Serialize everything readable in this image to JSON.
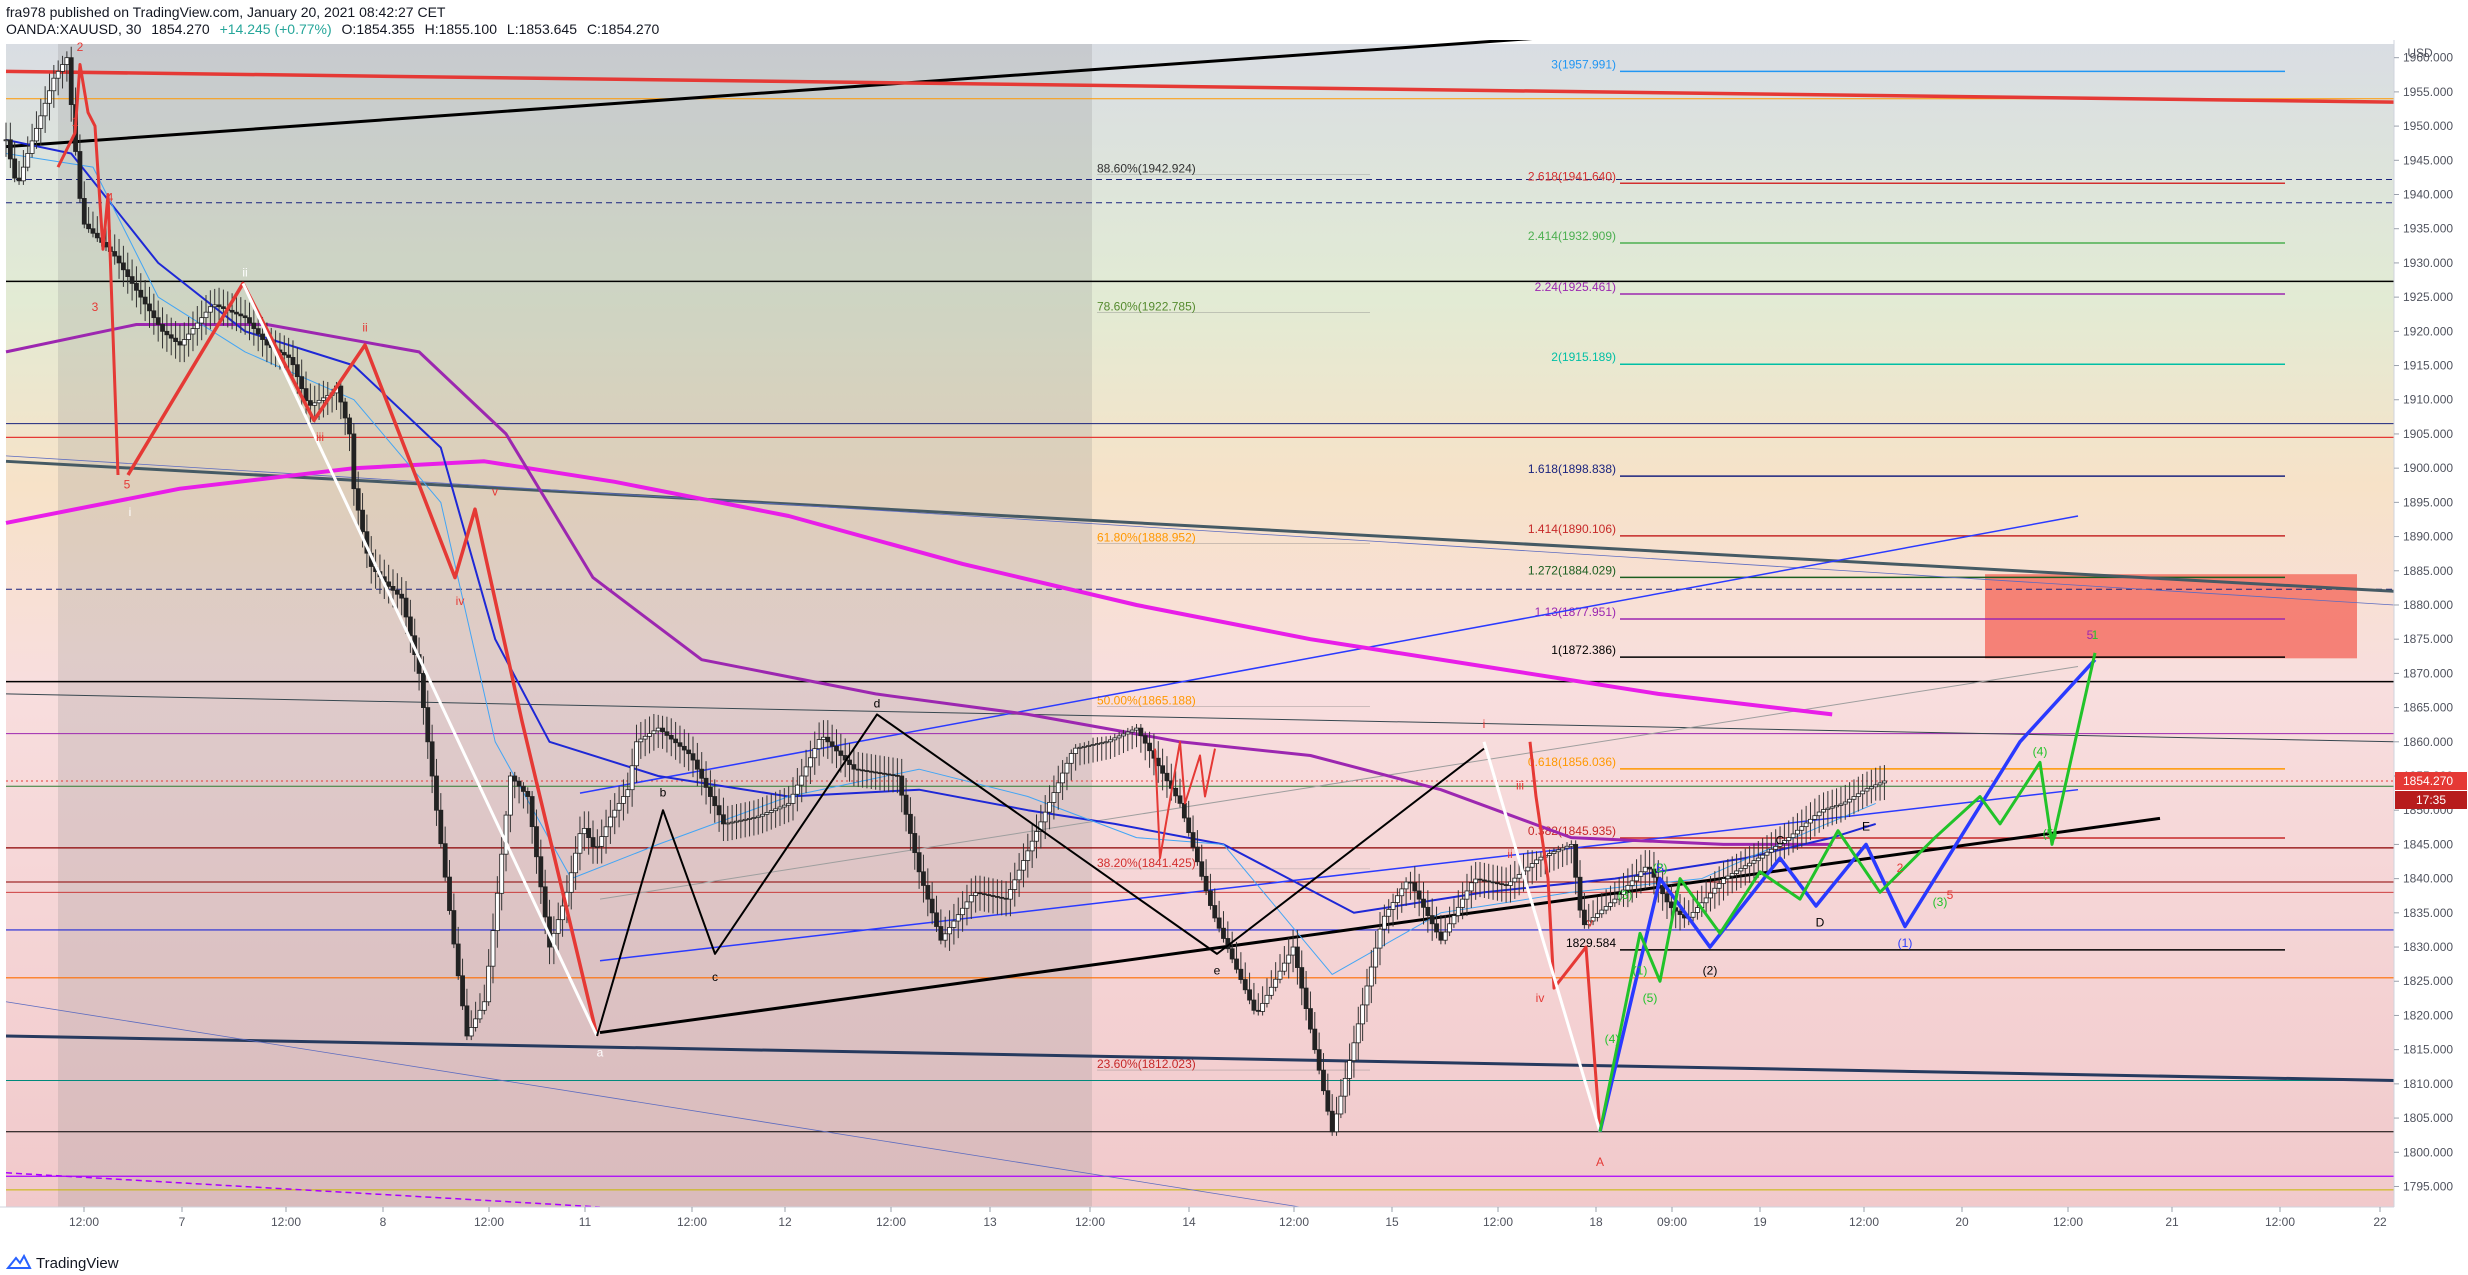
{
  "header": {
    "published": "fra978 published on TradingView.com, January 20, 2021 08:42:27 CET",
    "symbol": "OANDA:XAUUSD, 30",
    "last": "1854.270",
    "change": "+14.245 (+0.77%)",
    "open": "O:1854.355",
    "high": "H:1855.100",
    "low": "L:1853.645",
    "close": "C:1854.270"
  },
  "footer": {
    "brand": "TradingView"
  },
  "axis": {
    "currency": "USD",
    "ylim": [
      1792,
      1962
    ],
    "y_ticks": [
      "1960.000",
      "1955.000",
      "1950.000",
      "1945.000",
      "1940.000",
      "1935.000",
      "1930.000",
      "1925.000",
      "1920.000",
      "1915.000",
      "1910.000",
      "1905.000",
      "1900.000",
      "1895.000",
      "1890.000",
      "1885.000",
      "1880.000",
      "1875.000",
      "1870.000",
      "1865.000",
      "1860.000",
      "1855.000",
      "1850.000",
      "1845.000",
      "1840.000",
      "1835.000",
      "1830.000",
      "1825.000",
      "1820.000",
      "1815.000",
      "1810.000",
      "1805.000",
      "1800.000",
      "1795.000"
    ],
    "x_ticks": [
      "12:00",
      "7",
      "12:00",
      "8",
      "12:00",
      "11",
      "12:00",
      "12",
      "12:00",
      "13",
      "12:00",
      "14",
      "12:00",
      "15",
      "12:00",
      "18",
      "09:00",
      "19",
      "12:00",
      "20",
      "12:00",
      "21",
      "12:00",
      "22"
    ],
    "price_badge": "1854.270",
    "countdown": "17:35"
  },
  "colors": {
    "price_badge": "#e53935",
    "countdown_badge": "#b71c1c",
    "red_zone": "#f44336",
    "retrace": "#808080",
    "ma_magenta": "#e81ee8",
    "ma_purple": "#9c27b0",
    "ma_blue": "#1e28d6",
    "wave_red": "#e53935",
    "wave_white": "#ffffff",
    "wave_black": "#000000",
    "wave_blue": "#2a3aff",
    "wave_green": "#21c32a"
  },
  "chart_data": {
    "type": "line",
    "title": "OANDA:XAUUSD, 30",
    "xlabel": "",
    "ylabel": "USD",
    "ylim": [
      1792,
      1962
    ],
    "grid": false,
    "series": [
      {
        "x": [
          0,
          5,
          10,
          22,
          28,
          35,
          50,
          60,
          72,
          80,
          95,
          110,
          120,
          131,
          139,
          150,
          152,
          158,
          160,
          167,
          175,
          182,
          190,
          198,
          207,
          212,
          220,
          225,
          232,
          240,
          250,
          258,
          265,
          271,
          278,
          286,
          290,
          300,
          315,
          330,
          345,
          360,
          375,
          390,
          410,
          420,
          430,
          445,
          460,
          477,
          491,
          506,
          520,
          540,
          555,
          575,
          592,
          610,
          620,
          633,
          645,
          660,
          675,
          690,
          705,
          720,
          725,
          740,
          755,
          765,
          773,
          790,
          806,
          820,
          835,
          845,
          855,
          864
        ],
        "y": [
          1948,
          1941,
          1946,
          1957,
          1960,
          1936,
          1931,
          1926,
          1920,
          1918,
          1924,
          1922,
          1918,
          1916,
          1909,
          1911,
          1912,
          1905,
          1897,
          1886,
          1883,
          1881,
          1870,
          1850,
          1828,
          1817,
          1822,
          1835,
          1855,
          1852,
          1830,
          1838,
          1848,
          1844,
          1849,
          1853,
          1860,
          1862,
          1858,
          1848,
          1849,
          1851,
          1861,
          1856,
          1855,
          1841,
          1831,
          1838,
          1837,
          1849,
          1859,
          1860,
          1862,
          1851,
          1835,
          1820,
          1830,
          1803,
          1816,
          1834,
          1840,
          1831,
          1840,
          1839,
          1843,
          1845,
          1833,
          1837,
          1842,
          1836,
          1834,
          1840,
          1843,
          1846,
          1850,
          1851,
          1853,
          1854.27
        ]
      }
    ],
    "series_band": [
      {
        "x": [
          0,
          30,
          60,
          80,
          100,
          120,
          140,
          160,
          170,
          180,
          200,
          230,
          260,
          290,
          320,
          350,
          380,
          410,
          440,
          470,
          500,
          530,
          560,
          590,
          620,
          650,
          680,
          710,
          740,
          770,
          800,
          820,
          840,
          860
        ],
        "high": [
          1951,
          1961,
          1937,
          1924,
          1926,
          1922,
          1916,
          1906,
          1893,
          1888,
          1870,
          1847,
          1860,
          1864,
          1862,
          1860,
          1863,
          1861,
          1856,
          1853,
          1860,
          1861,
          1862,
          1851,
          1830,
          1842,
          1845,
          1843,
          1848,
          1844,
          1847,
          1851,
          1854,
          1856
        ],
        "low": [
          1944,
          1951,
          1920,
          1915,
          1917,
          1913,
          1903,
          1895,
          1880,
          1878,
          1845,
          1818,
          1830,
          1846,
          1845,
          1840,
          1845,
          1843,
          1826,
          1831,
          1845,
          1853,
          1848,
          1826,
          1803,
          1830,
          1837,
          1833,
          1837,
          1833,
          1839,
          1844,
          1848,
          1852
        ]
      }
    ],
    "fib_levels": [
      {
        "label": "3(1957.991)",
        "value": 1957.991,
        "color": "#2196f3"
      },
      {
        "label": "2.618(1941.640)",
        "value": 1941.64,
        "color": "#d32f2f"
      },
      {
        "label": "2.414(1932.909)",
        "value": 1932.909,
        "color": "#4caf50"
      },
      {
        "label": "2.24(1925.461)",
        "value": 1925.461,
        "color": "#9c27b0"
      },
      {
        "label": "2(1915.189)",
        "value": 1915.189,
        "color": "#00bfa5"
      },
      {
        "label": "1.618(1898.838)",
        "value": 1898.838,
        "color": "#1a237e"
      },
      {
        "label": "1.414(1890.106)",
        "value": 1890.106,
        "color": "#c62828"
      },
      {
        "label": "1.272(1884.029)",
        "value": 1884.029,
        "color": "#1b5e20"
      },
      {
        "label": "1.13(1877.951)",
        "value": 1877.951,
        "color": "#9c27b0"
      },
      {
        "label": "1(1872.386)",
        "value": 1872.386,
        "color": "#000000"
      },
      {
        "label": "0.618(1856.036)",
        "value": 1856.036,
        "color": "#ff9800"
      },
      {
        "label": "0.382(1845.935)",
        "value": 1845.935,
        "color": "#c62828"
      },
      {
        "label": "1829.584",
        "value": 1829.584,
        "color": "#000000"
      }
    ],
    "retracement_levels": [
      {
        "label": "88.60%(1942.924)",
        "value": 1942.924,
        "color": "#333333"
      },
      {
        "label": "78.60%(1922.785)",
        "value": 1922.785,
        "color": "#558b2f"
      },
      {
        "label": "61.80%(1888.952)",
        "value": 1888.952,
        "color": "#ff9800"
      },
      {
        "label": "50.00%(1865.188)",
        "value": 1865.188,
        "color": "#ff9800"
      },
      {
        "label": "38.20%(1841.425)",
        "value": 1841.425,
        "color": "#d32f2f"
      },
      {
        "label": "23.60%(1812.023)",
        "value": 1812.023,
        "color": "#c62828"
      }
    ],
    "wave_labels": [
      "2",
      "1",
      "4",
      "3",
      "5",
      "ii",
      "i",
      "ii",
      "iii",
      "iv",
      "v",
      "a",
      "b",
      "c",
      "d",
      "e",
      "i",
      "ii",
      "iii",
      "iv",
      "v",
      "A",
      "B",
      "C",
      "D",
      "E",
      "(1)",
      "(2)",
      "(3)",
      "(4)",
      "(5)",
      "(1)",
      "(2)",
      "(3)",
      "(4)",
      "(5)",
      "1",
      "2",
      "5"
    ]
  }
}
